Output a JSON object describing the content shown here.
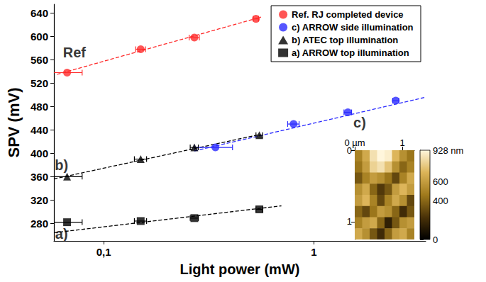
{
  "chart_data": [
    {
      "type": "scatter",
      "xlabel": "Light power (mW)",
      "ylabel": "SPV (mV)",
      "log": "x",
      "grid": false,
      "legend": "top-right",
      "xlim": [
        0.058,
        3.4
      ],
      "xticks": [
        {
          "value": 0.1,
          "label": "0,1"
        },
        1
      ],
      "ylim": [
        250,
        655
      ],
      "yticks": [
        280,
        320,
        360,
        400,
        440,
        480,
        520,
        560,
        600,
        640
      ],
      "series": [
        {
          "name": "Ref. RJ completed device",
          "color": "#ff2a2a",
          "marker": "circle",
          "x": [
            0.067,
            0.15,
            0.27,
            0.53
          ],
          "values": [
            538,
            578,
            598,
            630
          ],
          "x_err": [
            0.012,
            0.008,
            0.015,
            0.015
          ]
        },
        {
          "name": "c) ARROW side illumination",
          "color": "#2a2aff",
          "marker": "circle",
          "x": [
            0.34,
            0.8,
            1.45,
            2.45
          ],
          "values": [
            410,
            450,
            470,
            490
          ],
          "x_err": [
            0.07,
            0.05,
            0.06,
            0.08
          ]
        },
        {
          "name": "b) ATEC top illumination",
          "color": "#000000",
          "marker": "triangle",
          "x": [
            0.067,
            0.15,
            0.27,
            0.55
          ],
          "values": [
            360,
            390,
            410,
            431
          ],
          "x_err": [
            0.012,
            0.01,
            0.012,
            0.02
          ]
        },
        {
          "name": "a) ARROW top illumination",
          "color": "#000000",
          "marker": "square",
          "x": [
            0.067,
            0.15,
            0.27,
            0.55
          ],
          "values": [
            282,
            284,
            289,
            304
          ],
          "x_err": [
            0.012,
            0.01,
            0.012,
            0.02
          ]
        },
        {
          "type": "line",
          "line_style": "dashed",
          "color": "#ff2a2a",
          "x": [
            0.06,
            0.56
          ],
          "values": [
            535,
            633
          ]
        },
        {
          "type": "line",
          "line_style": "dashed",
          "color": "#2a2aff",
          "x": [
            0.27,
            3.4
          ],
          "values": [
            404,
            496
          ]
        },
        {
          "type": "line",
          "line_style": "dashed",
          "color": "#000000",
          "x": [
            0.058,
            0.55
          ],
          "values": [
            356,
            432
          ]
        },
        {
          "type": "line",
          "line_style": "dashed",
          "color": "#000000",
          "x": [
            0.058,
            0.7
          ],
          "values": [
            264,
            310
          ]
        }
      ],
      "annotations": [
        {
          "text": "Ref",
          "x": 0.0726,
          "y": 573
        },
        {
          "text": "b)",
          "x": 0.063,
          "y": 380
        },
        {
          "text": "a)",
          "x": 0.063,
          "y": 262
        },
        {
          "text": "c)",
          "x": 1.65,
          "y": 452
        }
      ]
    },
    {
      "type": "heatmap",
      "xlim": [
        0,
        1.25
      ],
      "xticks": [
        {
          "value": 0,
          "label": "0 µm"
        },
        1
      ],
      "ylim": [
        0,
        1.25
      ],
      "yticks": [
        0,
        1
      ],
      "cells": [
        [
          500,
          650,
          850,
          928,
          900,
          700,
          550,
          450
        ],
        [
          450,
          600,
          800,
          850,
          750,
          550,
          400,
          500
        ],
        [
          350,
          500,
          600,
          550,
          450,
          300,
          500,
          650
        ],
        [
          550,
          650,
          400,
          250,
          350,
          600,
          700,
          600
        ],
        [
          600,
          700,
          500,
          300,
          500,
          650,
          550,
          300
        ],
        [
          400,
          300,
          450,
          600,
          550,
          400,
          200,
          350
        ],
        [
          500,
          600,
          650,
          400,
          150,
          350,
          550,
          600
        ],
        [
          650,
          550,
          350,
          200,
          400,
          600,
          650,
          500
        ]
      ],
      "colorbar_range": [
        0,
        928
      ],
      "colorbar_ticks": [
        0,
        400,
        600,
        {
          "value": 928,
          "label": "928 nm"
        }
      ]
    }
  ]
}
